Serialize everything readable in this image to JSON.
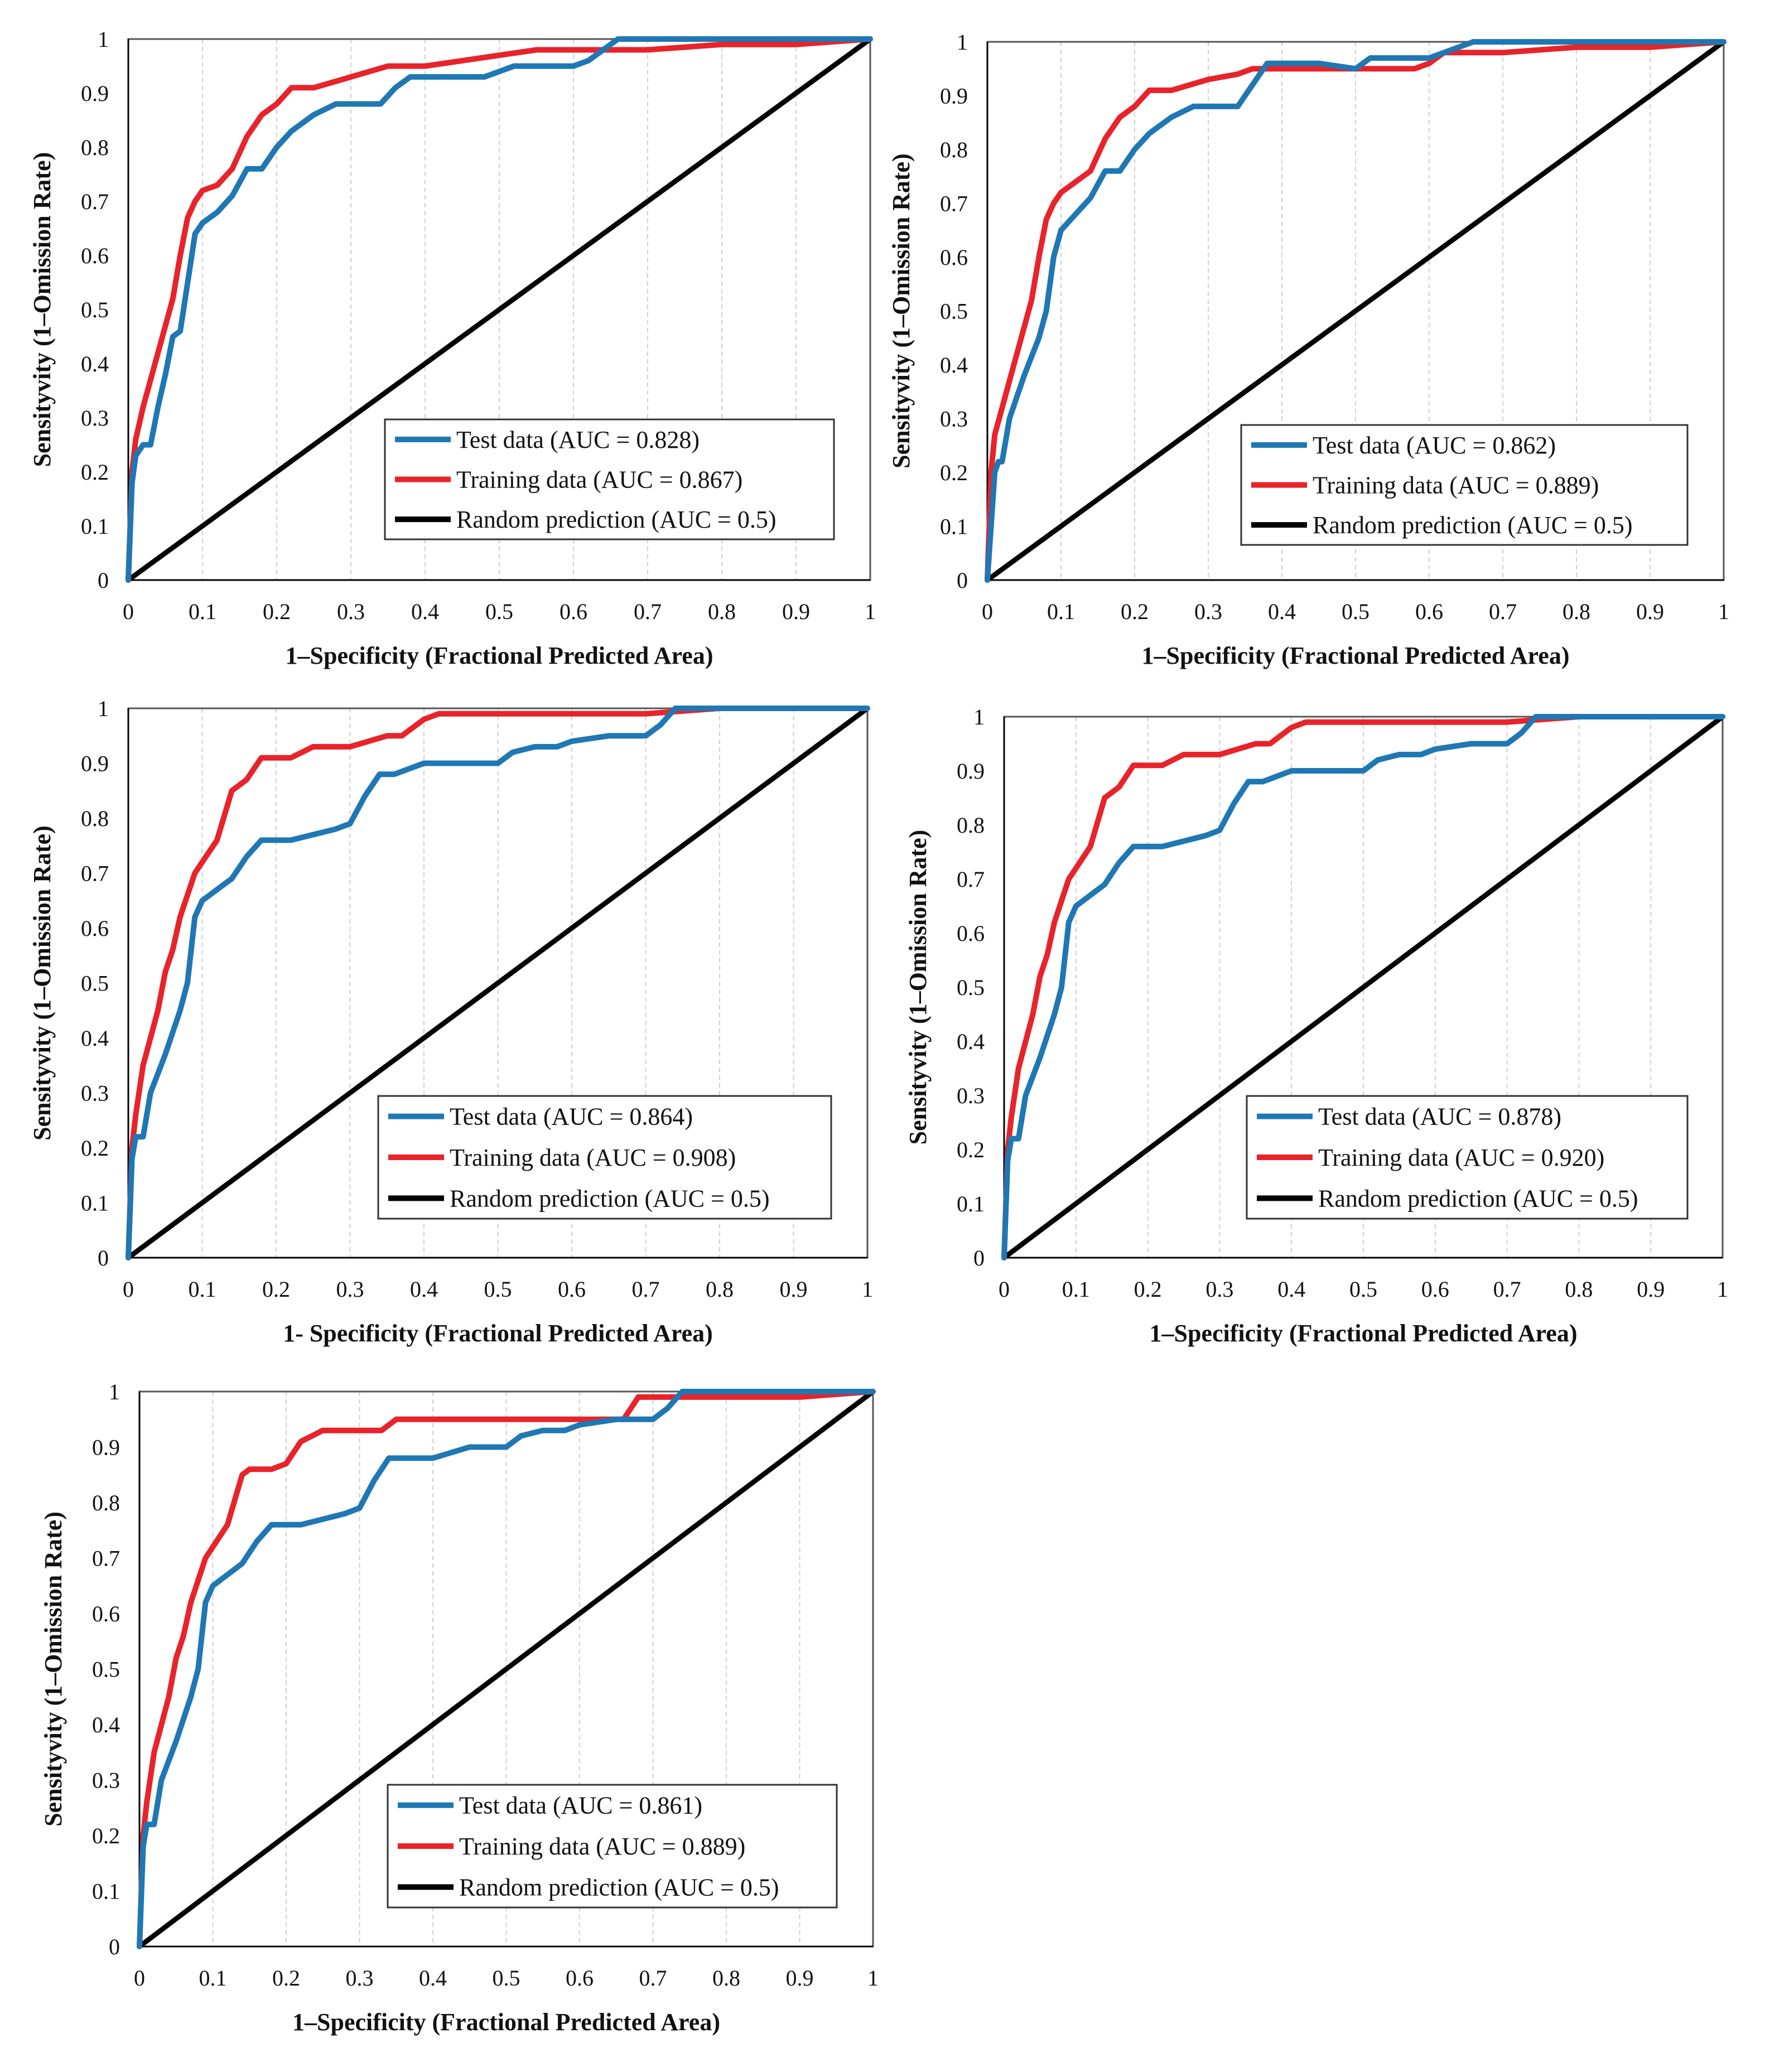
{
  "figure": {
    "background": "#ffffff"
  },
  "colors": {
    "test": "#1f77b4",
    "training": "#e8232a",
    "random": "#000000",
    "grid": "#cfcfcf",
    "axis": "#000000"
  },
  "chart_data": [
    {
      "type": "line",
      "xlabel": "1–Specificity (Fractional Predicted Area)",
      "ylabel": "Sensityvity (1–Omission Rate)",
      "xlim": [
        0,
        1
      ],
      "ylim": [
        0,
        1
      ],
      "xticks": [
        "0",
        "0.1",
        "0.2",
        "0.3",
        "0.4",
        "0.5",
        "0.6",
        "0.7",
        "0.8",
        "0.9",
        "1"
      ],
      "yticks": [
        "0",
        "0.1",
        "0.2",
        "0.3",
        "0.4",
        "0.5",
        "0.6",
        "0.7",
        "0.8",
        "0.9",
        "1"
      ],
      "grid": "vertical dashed",
      "legend_position": "bottom-right",
      "series": [
        {
          "name": "Test data (AUC = 0.828)",
          "color": "#1f77b4",
          "x": [
            0,
            0.005,
            0.01,
            0.02,
            0.03,
            0.04,
            0.05,
            0.06,
            0.07,
            0.08,
            0.09,
            0.1,
            0.12,
            0.14,
            0.16,
            0.18,
            0.2,
            0.22,
            0.25,
            0.28,
            0.3,
            0.34,
            0.36,
            0.38,
            0.4,
            0.45,
            0.48,
            0.5,
            0.52,
            0.55,
            0.58,
            0.6,
            0.62,
            0.64,
            0.66,
            0.7,
            0.8,
            0.9,
            1
          ],
          "y": [
            0,
            0.18,
            0.23,
            0.25,
            0.25,
            0.32,
            0.38,
            0.45,
            0.46,
            0.55,
            0.64,
            0.66,
            0.68,
            0.71,
            0.76,
            0.76,
            0.8,
            0.83,
            0.86,
            0.88,
            0.88,
            0.88,
            0.91,
            0.93,
            0.93,
            0.93,
            0.93,
            0.94,
            0.95,
            0.95,
            0.95,
            0.95,
            0.96,
            0.98,
            1,
            1,
            1,
            1,
            1
          ]
        },
        {
          "name": "Training data (AUC = 0.867)",
          "color": "#e8232a",
          "x": [
            0,
            0.005,
            0.01,
            0.02,
            0.04,
            0.06,
            0.07,
            0.08,
            0.09,
            0.1,
            0.12,
            0.14,
            0.16,
            0.18,
            0.2,
            0.22,
            0.25,
            0.3,
            0.35,
            0.4,
            0.45,
            0.5,
            0.55,
            0.6,
            0.65,
            0.7,
            0.8,
            0.9,
            1
          ],
          "y": [
            0,
            0.2,
            0.26,
            0.32,
            0.42,
            0.52,
            0.6,
            0.67,
            0.7,
            0.72,
            0.73,
            0.76,
            0.82,
            0.86,
            0.88,
            0.91,
            0.91,
            0.93,
            0.95,
            0.95,
            0.96,
            0.97,
            0.98,
            0.98,
            0.98,
            0.98,
            0.99,
            0.99,
            1
          ]
        },
        {
          "name": "Random prediction (AUC = 0.5)",
          "color": "#000000",
          "x": [
            0,
            1
          ],
          "y": [
            0,
            1
          ]
        }
      ]
    },
    {
      "type": "line",
      "xlabel": "1–Specificity (Fractional Predicted Area)",
      "ylabel": "Sensityvity (1–Omission Rate)",
      "xlim": [
        0,
        1
      ],
      "ylim": [
        0,
        1
      ],
      "xticks": [
        "0",
        "0.1",
        "0.2",
        "0.3",
        "0.4",
        "0.5",
        "0.6",
        "0.7",
        "0.8",
        "0.9",
        "1"
      ],
      "yticks": [
        "0",
        "0.1",
        "0.2",
        "0.3",
        "0.4",
        "0.5",
        "0.6",
        "0.7",
        "0.8",
        "0.9",
        "1"
      ],
      "grid": "vertical dashed",
      "legend_position": "bottom-right",
      "series": [
        {
          "name": "Test data (AUC = 0.862)",
          "color": "#1f77b4",
          "x": [
            0,
            0.01,
            0.015,
            0.02,
            0.03,
            0.05,
            0.07,
            0.08,
            0.09,
            0.1,
            0.12,
            0.14,
            0.16,
            0.18,
            0.2,
            0.22,
            0.25,
            0.28,
            0.3,
            0.34,
            0.36,
            0.38,
            0.4,
            0.45,
            0.5,
            0.52,
            0.55,
            0.58,
            0.6,
            0.62,
            0.64,
            0.66,
            0.7,
            0.8,
            0.9,
            1
          ],
          "y": [
            0,
            0.2,
            0.22,
            0.22,
            0.3,
            0.38,
            0.45,
            0.5,
            0.6,
            0.65,
            0.68,
            0.71,
            0.76,
            0.76,
            0.8,
            0.83,
            0.86,
            0.88,
            0.88,
            0.88,
            0.92,
            0.96,
            0.96,
            0.96,
            0.95,
            0.97,
            0.97,
            0.97,
            0.97,
            0.98,
            0.99,
            1,
            1,
            1,
            1,
            1
          ]
        },
        {
          "name": "Training data (AUC = 0.889)",
          "color": "#e8232a",
          "x": [
            0,
            0.005,
            0.01,
            0.02,
            0.04,
            0.06,
            0.07,
            0.08,
            0.09,
            0.1,
            0.12,
            0.14,
            0.16,
            0.18,
            0.2,
            0.22,
            0.25,
            0.3,
            0.34,
            0.36,
            0.4,
            0.5,
            0.58,
            0.6,
            0.62,
            0.65,
            0.7,
            0.8,
            0.9,
            1
          ],
          "y": [
            0,
            0.2,
            0.27,
            0.32,
            0.42,
            0.52,
            0.6,
            0.67,
            0.7,
            0.72,
            0.74,
            0.76,
            0.82,
            0.86,
            0.88,
            0.91,
            0.91,
            0.93,
            0.94,
            0.95,
            0.95,
            0.95,
            0.95,
            0.96,
            0.98,
            0.98,
            0.98,
            0.99,
            0.99,
            1
          ]
        },
        {
          "name": "Random prediction (AUC = 0.5)",
          "color": "#000000",
          "x": [
            0,
            1
          ],
          "y": [
            0,
            1
          ]
        }
      ]
    },
    {
      "type": "line",
      "xlabel": "1- Specificity (Fractional Predicted Area)",
      "ylabel": "Sensityvity (1–Omission Rate)",
      "xlim": [
        0,
        1
      ],
      "ylim": [
        0,
        1
      ],
      "xticks": [
        "0",
        "0.1",
        "0.2",
        "0.3",
        "0.4",
        "0.5",
        "0.6",
        "0.7",
        "0.8",
        "0.9",
        "1"
      ],
      "yticks": [
        "0",
        "0.1",
        "0.2",
        "0.3",
        "0.4",
        "0.5",
        "0.6",
        "0.7",
        "0.8",
        "0.9",
        "1"
      ],
      "grid": "vertical dashed",
      "legend_position": "bottom-right",
      "series": [
        {
          "name": "Test data (AUC = 0.864)",
          "color": "#1f77b4",
          "x": [
            0,
            0.005,
            0.01,
            0.015,
            0.02,
            0.03,
            0.05,
            0.07,
            0.08,
            0.09,
            0.1,
            0.12,
            0.14,
            0.16,
            0.18,
            0.2,
            0.22,
            0.25,
            0.28,
            0.3,
            0.32,
            0.34,
            0.36,
            0.38,
            0.4,
            0.45,
            0.48,
            0.5,
            0.52,
            0.55,
            0.58,
            0.6,
            0.65,
            0.68,
            0.7,
            0.72,
            0.74,
            0.8,
            0.9,
            1
          ],
          "y": [
            0,
            0.18,
            0.22,
            0.22,
            0.22,
            0.3,
            0.37,
            0.45,
            0.5,
            0.62,
            0.65,
            0.67,
            0.69,
            0.73,
            0.76,
            0.76,
            0.76,
            0.77,
            0.78,
            0.79,
            0.84,
            0.88,
            0.88,
            0.89,
            0.9,
            0.9,
            0.9,
            0.9,
            0.92,
            0.93,
            0.93,
            0.94,
            0.95,
            0.95,
            0.95,
            0.97,
            1,
            1,
            1,
            1
          ]
        },
        {
          "name": "Training data (AUC = 0.908)",
          "color": "#e8232a",
          "x": [
            0,
            0.005,
            0.01,
            0.02,
            0.04,
            0.05,
            0.06,
            0.07,
            0.08,
            0.09,
            0.1,
            0.12,
            0.14,
            0.15,
            0.16,
            0.18,
            0.2,
            0.22,
            0.25,
            0.3,
            0.35,
            0.37,
            0.4,
            0.42,
            0.5,
            0.6,
            0.7,
            0.8,
            0.9,
            1
          ],
          "y": [
            0,
            0.2,
            0.26,
            0.35,
            0.45,
            0.52,
            0.56,
            0.62,
            0.66,
            0.7,
            0.72,
            0.76,
            0.85,
            0.86,
            0.87,
            0.91,
            0.91,
            0.91,
            0.93,
            0.93,
            0.95,
            0.95,
            0.98,
            0.99,
            0.99,
            0.99,
            0.99,
            1,
            1,
            1
          ]
        },
        {
          "name": "Random prediction (AUC = 0.5)",
          "color": "#000000",
          "x": [
            0,
            1
          ],
          "y": [
            0,
            1
          ]
        }
      ]
    },
    {
      "type": "line",
      "xlabel": "1–Specificity (Fractional Predicted Area)",
      "ylabel": "Sensityvity (1–Omission Rate)",
      "xlim": [
        0,
        1
      ],
      "ylim": [
        0,
        1
      ],
      "xticks": [
        "0",
        "0.1",
        "0.2",
        "0.3",
        "0.4",
        "0.5",
        "0.6",
        "0.7",
        "0.8",
        "0.9",
        "1"
      ],
      "yticks": [
        "0",
        "0.1",
        "0.2",
        "0.3",
        "0.4",
        "0.5",
        "0.6",
        "0.7",
        "0.8",
        "0.9",
        "1"
      ],
      "grid": "vertical dashed",
      "legend_position": "bottom-right",
      "series": [
        {
          "name": "Test data (AUC = 0.878)",
          "color": "#1f77b4",
          "x": [
            0,
            0.005,
            0.01,
            0.015,
            0.02,
            0.03,
            0.05,
            0.07,
            0.08,
            0.09,
            0.1,
            0.12,
            0.14,
            0.16,
            0.18,
            0.2,
            0.22,
            0.25,
            0.28,
            0.3,
            0.32,
            0.34,
            0.36,
            0.38,
            0.4,
            0.45,
            0.48,
            0.5,
            0.52,
            0.55,
            0.58,
            0.6,
            0.65,
            0.68,
            0.7,
            0.72,
            0.74,
            0.8,
            0.9,
            1
          ],
          "y": [
            0,
            0.18,
            0.22,
            0.22,
            0.22,
            0.3,
            0.37,
            0.45,
            0.5,
            0.62,
            0.65,
            0.67,
            0.69,
            0.73,
            0.76,
            0.76,
            0.76,
            0.77,
            0.78,
            0.79,
            0.84,
            0.88,
            0.88,
            0.89,
            0.9,
            0.9,
            0.9,
            0.9,
            0.92,
            0.93,
            0.93,
            0.94,
            0.95,
            0.95,
            0.95,
            0.97,
            1,
            1,
            1,
            1
          ]
        },
        {
          "name": "Training data (AUC = 0.920)",
          "color": "#e8232a",
          "x": [
            0,
            0.005,
            0.01,
            0.02,
            0.04,
            0.05,
            0.06,
            0.07,
            0.08,
            0.09,
            0.1,
            0.12,
            0.14,
            0.15,
            0.16,
            0.18,
            0.2,
            0.22,
            0.25,
            0.3,
            0.35,
            0.37,
            0.4,
            0.42,
            0.5,
            0.6,
            0.7,
            0.8,
            0.9,
            1
          ],
          "y": [
            0,
            0.2,
            0.26,
            0.35,
            0.45,
            0.52,
            0.56,
            0.62,
            0.66,
            0.7,
            0.72,
            0.76,
            0.85,
            0.86,
            0.87,
            0.91,
            0.91,
            0.91,
            0.93,
            0.93,
            0.95,
            0.95,
            0.98,
            0.99,
            0.99,
            0.99,
            0.99,
            1,
            1,
            1
          ]
        },
        {
          "name": "Random prediction (AUC = 0.5)",
          "color": "#000000",
          "x": [
            0,
            1
          ],
          "y": [
            0,
            1
          ]
        }
      ]
    },
    {
      "type": "line",
      "xlabel": "1–Specificity (Fractional Predicted Area)",
      "ylabel": "Sensityvity (1–Omission Rate)",
      "xlim": [
        0,
        1
      ],
      "ylim": [
        0,
        1
      ],
      "xticks": [
        "0",
        "0.1",
        "0.2",
        "0.3",
        "0.4",
        "0.5",
        "0.6",
        "0.7",
        "0.8",
        "0.9",
        "1"
      ],
      "yticks": [
        "0",
        "0.1",
        "0.2",
        "0.3",
        "0.4",
        "0.5",
        "0.6",
        "0.7",
        "0.8",
        "0.9",
        "1"
      ],
      "grid": "vertical dashed",
      "legend_position": "bottom-right",
      "series": [
        {
          "name": "Test data (AUC = 0.861)",
          "color": "#1f77b4",
          "x": [
            0,
            0.005,
            0.01,
            0.015,
            0.02,
            0.03,
            0.05,
            0.07,
            0.08,
            0.09,
            0.1,
            0.12,
            0.14,
            0.16,
            0.18,
            0.2,
            0.22,
            0.25,
            0.28,
            0.3,
            0.32,
            0.34,
            0.36,
            0.38,
            0.4,
            0.45,
            0.48,
            0.5,
            0.52,
            0.55,
            0.58,
            0.6,
            0.65,
            0.68,
            0.7,
            0.72,
            0.74,
            0.8,
            0.9,
            1
          ],
          "y": [
            0,
            0.18,
            0.22,
            0.22,
            0.22,
            0.3,
            0.37,
            0.45,
            0.5,
            0.62,
            0.65,
            0.67,
            0.69,
            0.73,
            0.76,
            0.76,
            0.76,
            0.77,
            0.78,
            0.79,
            0.84,
            0.88,
            0.88,
            0.88,
            0.88,
            0.9,
            0.9,
            0.9,
            0.92,
            0.93,
            0.93,
            0.94,
            0.95,
            0.95,
            0.95,
            0.97,
            1,
            1,
            1,
            1
          ]
        },
        {
          "name": "Training data (AUC = 0.889)",
          "color": "#e8232a",
          "x": [
            0,
            0.005,
            0.01,
            0.02,
            0.04,
            0.05,
            0.06,
            0.07,
            0.08,
            0.09,
            0.1,
            0.12,
            0.14,
            0.15,
            0.16,
            0.18,
            0.2,
            0.22,
            0.25,
            0.3,
            0.33,
            0.35,
            0.4,
            0.5,
            0.6,
            0.66,
            0.68,
            0.7,
            0.8,
            0.9,
            1
          ],
          "y": [
            0,
            0.2,
            0.26,
            0.35,
            0.45,
            0.52,
            0.56,
            0.62,
            0.66,
            0.7,
            0.72,
            0.76,
            0.85,
            0.86,
            0.86,
            0.86,
            0.87,
            0.91,
            0.93,
            0.93,
            0.93,
            0.95,
            0.95,
            0.95,
            0.95,
            0.95,
            0.99,
            0.99,
            0.99,
            0.99,
            1
          ]
        },
        {
          "name": "Random prediction (AUC = 0.5)",
          "color": "#000000",
          "x": [
            0,
            1
          ],
          "y": [
            0,
            1
          ]
        }
      ]
    }
  ]
}
